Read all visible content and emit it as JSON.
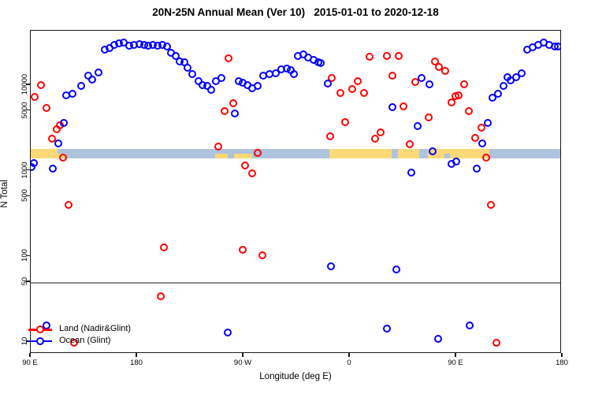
{
  "title": "20N-25N Annual Mean (Ver 10)   2015-01-01 to 2020-12-18",
  "axes": {
    "xlabel": "Longitude (deg E)",
    "ylabel": "N Total",
    "x_ticks": [
      {
        "lon": 90,
        "label": "90 E"
      },
      {
        "lon": 180,
        "label": "180"
      },
      {
        "lon": 270,
        "label": "90 W"
      },
      {
        "lon": 360,
        "label": "0"
      },
      {
        "lon": 450,
        "label": "90 E"
      },
      {
        "lon": 540,
        "label": "180"
      }
    ],
    "y_ticks": [
      {
        "value": 10,
        "label": "10"
      },
      {
        "value": 50,
        "label": "50"
      },
      {
        "value": 100,
        "label": "100"
      },
      {
        "value": 500,
        "label": "500"
      },
      {
        "value": 1000,
        "label": "1000"
      },
      {
        "value": 5000,
        "label": "5000"
      },
      {
        "value": 10000,
        "label": "10000"
      }
    ]
  },
  "reference_line": {
    "value": 50,
    "color": "#8f8f8f"
  },
  "land_ocean_strip": {
    "top_value": 1800,
    "bottom_value": 1390,
    "land_color": "#fbd977",
    "ocean_color": "#aec3de",
    "segments": [
      {
        "from": 90,
        "to": 112.7,
        "surface": "land",
        "part": "full"
      },
      {
        "from": 112.7,
        "to": 342.7,
        "surface": "ocean",
        "part": "full"
      },
      {
        "from": 112.7,
        "to": 119.3,
        "surface": "land",
        "part": "bottom"
      },
      {
        "from": 246,
        "to": 256.7,
        "surface": "land",
        "part": "bottom"
      },
      {
        "from": 262,
        "to": 277.3,
        "surface": "land",
        "part": "bottom"
      },
      {
        "from": 342.7,
        "to": 395.3,
        "surface": "land",
        "part": "full"
      },
      {
        "from": 395.3,
        "to": 400.7,
        "surface": "ocean",
        "part": "full"
      },
      {
        "from": 400.7,
        "to": 418.7,
        "surface": "land",
        "part": "full"
      },
      {
        "from": 418.7,
        "to": 426,
        "surface": "ocean",
        "part": "full"
      },
      {
        "from": 426,
        "to": 478,
        "surface": "land",
        "part": "full"
      },
      {
        "from": 440,
        "to": 444.7,
        "surface": "ocean",
        "part": "bottom"
      },
      {
        "from": 478,
        "to": 540,
        "surface": "ocean",
        "part": "full"
      }
    ]
  },
  "legend": {
    "items": [
      {
        "label": "Land (Nadir&Glint)",
        "color": "#ff0000"
      },
      {
        "label": "Ocean (Glint)",
        "color": "#0000ff"
      }
    ]
  },
  "chart_data": {
    "type": "scatter",
    "title": "20N-25N Annual Mean (Ver 10)   2015-01-01 to 2020-12-18",
    "xlabel": "Longitude (deg E)",
    "ylabel": "N Total",
    "x_axis_note": "longitude in deg E increasing along axis, 90E wraps to 540 (=180E shown twice)",
    "y_scale": "log10",
    "x_range": [
      90,
      540
    ],
    "y_range": [
      9,
      38000
    ],
    "legend_position": "bottom-left",
    "series": [
      {
        "name": "Land (Nadir&Glint)",
        "color": "#ff0000",
        "points": [
          [
            98.7,
            9980
          ],
          [
            93.3,
            7260
          ],
          [
            103.3,
            5400
          ],
          [
            108,
            2360
          ],
          [
            112,
            3050
          ],
          [
            114.7,
            3390
          ],
          [
            117.3,
            1420
          ],
          [
            122,
            400
          ],
          [
            126.7,
            9.8
          ],
          [
            200,
            34
          ],
          [
            202.7,
            127
          ],
          [
            248.7,
            1910
          ],
          [
            254,
            4960
          ],
          [
            257.3,
            20500
          ],
          [
            261.3,
            6130
          ],
          [
            269.3,
            119
          ],
          [
            271.3,
            1150
          ],
          [
            277.3,
            930
          ],
          [
            282,
            1620
          ],
          [
            286,
            103
          ],
          [
            343.3,
            2520
          ],
          [
            344.7,
            12080
          ],
          [
            352,
            8070
          ],
          [
            356,
            3680
          ],
          [
            362,
            8980
          ],
          [
            366.7,
            11090
          ],
          [
            372,
            8070
          ],
          [
            376.7,
            21400
          ],
          [
            381.3,
            2360
          ],
          [
            386,
            2800
          ],
          [
            391.3,
            21900
          ],
          [
            396,
            12880
          ],
          [
            401.3,
            21900
          ],
          [
            405.3,
            5630
          ],
          [
            410.7,
            2040
          ],
          [
            415.3,
            10860
          ],
          [
            426.7,
            4190
          ],
          [
            432,
            18840
          ],
          [
            435.3,
            16300
          ],
          [
            440.7,
            14620
          ],
          [
            446,
            6270
          ],
          [
            449.3,
            7410
          ],
          [
            452,
            7580
          ],
          [
            456.7,
            10190
          ],
          [
            460.7,
            4960
          ],
          [
            466,
            2420
          ],
          [
            471.3,
            3180
          ],
          [
            475.3,
            1420
          ],
          [
            479.3,
            400
          ],
          [
            484,
            9.7
          ]
        ]
      },
      {
        "name": "Ocean (Glint)",
        "color": "#0000ff",
        "points": [
          [
            90.7,
            1100
          ],
          [
            92.7,
            1230
          ],
          [
            103.3,
            15.6
          ],
          [
            108.7,
            1060
          ],
          [
            113.3,
            2080
          ],
          [
            118,
            3610
          ],
          [
            120,
            7550
          ],
          [
            125.3,
            7900
          ],
          [
            132.7,
            9760
          ],
          [
            138.7,
            12900
          ],
          [
            142,
            11600
          ],
          [
            147.3,
            14000
          ],
          [
            152.7,
            25900
          ],
          [
            156.7,
            27100
          ],
          [
            160.7,
            29400
          ],
          [
            164.7,
            30700
          ],
          [
            168.7,
            31300
          ],
          [
            173.3,
            28800
          ],
          [
            177.3,
            29400
          ],
          [
            182,
            30000
          ],
          [
            186,
            29400
          ],
          [
            189.3,
            28800
          ],
          [
            193.3,
            29400
          ],
          [
            197.3,
            28800
          ],
          [
            201.3,
            29400
          ],
          [
            205.3,
            28200
          ],
          [
            208.7,
            23800
          ],
          [
            212.7,
            21900
          ],
          [
            216,
            18800
          ],
          [
            220,
            18400
          ],
          [
            222.7,
            15900
          ],
          [
            226.7,
            13400
          ],
          [
            232,
            11100
          ],
          [
            235.3,
            10000
          ],
          [
            239.3,
            9760
          ],
          [
            242.7,
            8780
          ],
          [
            246.7,
            11100
          ],
          [
            251.3,
            12100
          ],
          [
            256.7,
            12.9
          ],
          [
            262.7,
            4660
          ],
          [
            266,
            11100
          ],
          [
            269.3,
            10600
          ],
          [
            273.3,
            10000
          ],
          [
            277.3,
            9180
          ],
          [
            282,
            9760
          ],
          [
            286.7,
            12900
          ],
          [
            292,
            13400
          ],
          [
            297.3,
            13700
          ],
          [
            302,
            15200
          ],
          [
            306.7,
            15500
          ],
          [
            310,
            14900
          ],
          [
            312.7,
            13400
          ],
          [
            316,
            21900
          ],
          [
            320.7,
            22800
          ],
          [
            324.7,
            21000
          ],
          [
            329.3,
            19800
          ],
          [
            333.3,
            18400
          ],
          [
            335.3,
            18100
          ],
          [
            341.3,
            10400
          ],
          [
            344,
            76
          ],
          [
            391.3,
            14.3
          ],
          [
            396,
            5500
          ],
          [
            399.3,
            70
          ],
          [
            412,
            955
          ],
          [
            417.3,
            3310
          ],
          [
            420.7,
            12100
          ],
          [
            427.3,
            10200
          ],
          [
            430,
            1690
          ],
          [
            434.7,
            10.9
          ],
          [
            446,
            1200
          ],
          [
            450,
            1280
          ],
          [
            461.3,
            15.6
          ],
          [
            467.3,
            1060
          ],
          [
            472,
            2090
          ],
          [
            476.7,
            3610
          ],
          [
            480.7,
            7110
          ],
          [
            485.3,
            7900
          ],
          [
            490,
            9760
          ],
          [
            493.3,
            12300
          ],
          [
            496,
            11300
          ],
          [
            500.7,
            12300
          ],
          [
            505.3,
            13700
          ],
          [
            510,
            25900
          ],
          [
            514.7,
            27800
          ],
          [
            519.3,
            29400
          ],
          [
            524,
            31300
          ],
          [
            528.7,
            29400
          ],
          [
            533.3,
            28200
          ],
          [
            536,
            28200
          ]
        ]
      }
    ]
  }
}
